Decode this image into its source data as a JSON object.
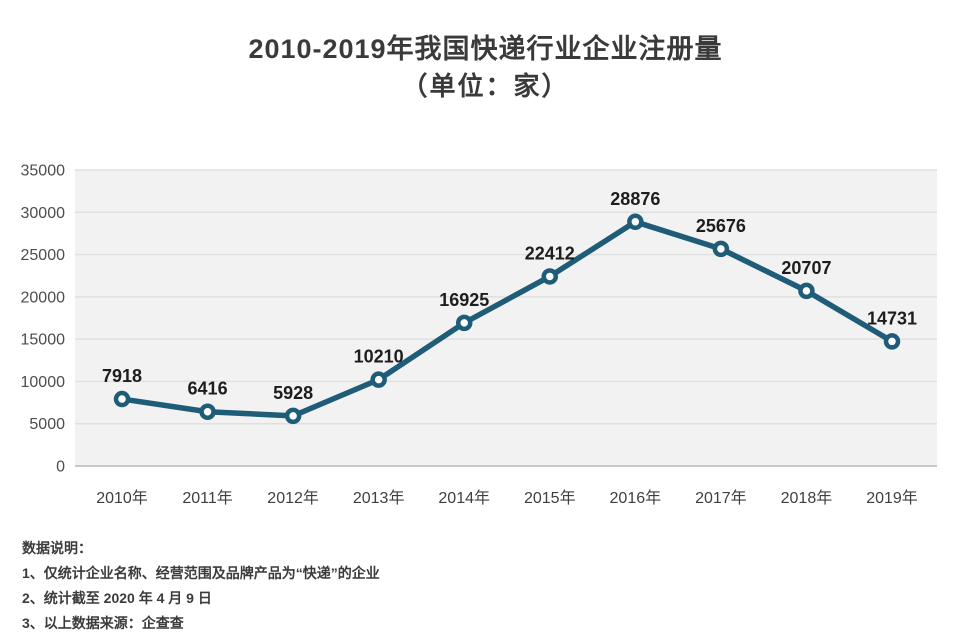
{
  "title": {
    "line1": "2010-2019年我国快递行业企业注册量",
    "line2": "（单位：家）"
  },
  "chart_data": {
    "type": "line",
    "title": "2010-2019年我国快递行业企业注册量（单位：家）",
    "categories": [
      "2010年",
      "2011年",
      "2012年",
      "2013年",
      "2014年",
      "2015年",
      "2016年",
      "2017年",
      "2018年",
      "2019年"
    ],
    "values": [
      7918,
      6416,
      5928,
      10210,
      16925,
      22412,
      28876,
      25676,
      20707,
      14731
    ],
    "series_name": "快递行业企业注册量",
    "unit": "家",
    "xlabel": "",
    "ylabel": "",
    "ylim": [
      0,
      35000
    ],
    "yticks": [
      0,
      5000,
      10000,
      15000,
      20000,
      25000,
      30000,
      35000
    ],
    "grid": true,
    "legend": "none",
    "line_color": "#1f5c78",
    "marker_fill": "#ffffff",
    "plot_bg": "#f2f2f2",
    "grid_color": "#e0e0e0",
    "axis_color": "#c8c8c8",
    "tick_color": "#4d4d4d",
    "label_color": "#1d1d1d"
  },
  "notes": {
    "heading": "数据说明：",
    "items": [
      "1、仅统计企业名称、经营范围及品牌产品为“快递”的企业",
      "2、统计截至 2020 年 4 月 9 日",
      "3、以上数据来源：企查查"
    ]
  }
}
